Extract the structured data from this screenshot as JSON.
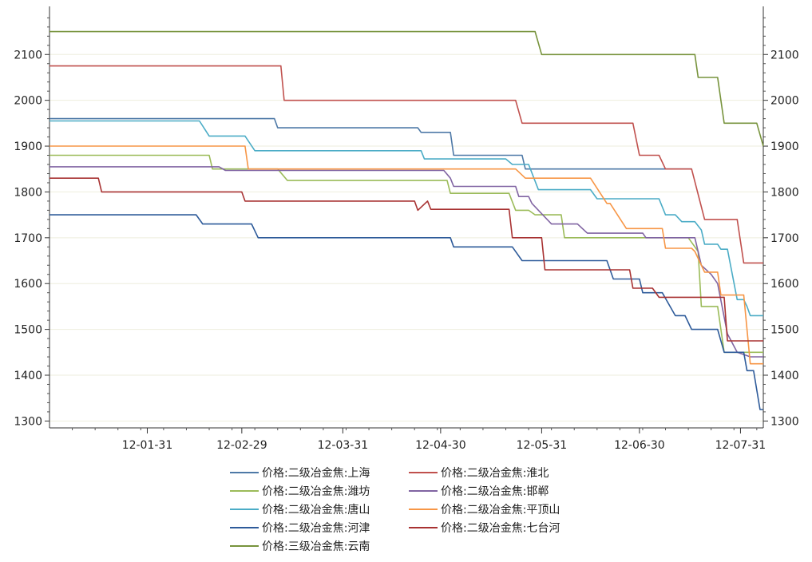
{
  "chart_data": {
    "type": "line",
    "title": "",
    "xlabel": "",
    "ylabel": "",
    "grid": true,
    "legend_position": "bottom",
    "x_range": [
      "2012-01-01",
      "2012-08-07"
    ],
    "ylim": [
      1285,
      2205
    ],
    "y_ticks": [
      1300,
      1400,
      1500,
      1600,
      1700,
      1800,
      1900,
      2000,
      2100
    ],
    "x_ticks": [
      {
        "date": "2012-01-31",
        "label": "12-01-31"
      },
      {
        "date": "2012-02-29",
        "label": "12-02-29"
      },
      {
        "date": "2012-03-31",
        "label": "12-03-31"
      },
      {
        "date": "2012-04-30",
        "label": "12-04-30"
      },
      {
        "date": "2012-05-31",
        "label": "12-05-31"
      },
      {
        "date": "2012-06-30",
        "label": "12-06-30"
      },
      {
        "date": "2012-07-31",
        "label": "12-07-31"
      }
    ],
    "series": [
      {
        "name": "价格:二级冶金焦:上海",
        "color": "#4E79A7",
        "points": [
          [
            "2012-01-01",
            1960
          ],
          [
            "2012-03-10",
            1960
          ],
          [
            "2012-03-11",
            1940
          ],
          [
            "2012-04-23",
            1940
          ],
          [
            "2012-04-24",
            1930
          ],
          [
            "2012-05-03",
            1930
          ],
          [
            "2012-05-04",
            1880
          ],
          [
            "2012-05-25",
            1880
          ],
          [
            "2012-05-26",
            1850
          ],
          [
            "2012-07-16",
            1850
          ]
        ]
      },
      {
        "name": "价格:二级冶金焦:淮北",
        "color": "#C0504D",
        "points": [
          [
            "2012-01-01",
            2075
          ],
          [
            "2012-03-12",
            2075
          ],
          [
            "2012-03-13",
            2000
          ],
          [
            "2012-05-23",
            2000
          ],
          [
            "2012-05-25",
            1950
          ],
          [
            "2012-06-28",
            1950
          ],
          [
            "2012-06-30",
            1880
          ],
          [
            "2012-07-06",
            1880
          ],
          [
            "2012-07-08",
            1850
          ],
          [
            "2012-07-16",
            1850
          ],
          [
            "2012-07-20",
            1740
          ],
          [
            "2012-07-30",
            1740
          ],
          [
            "2012-08-01",
            1645
          ],
          [
            "2012-08-07",
            1645
          ]
        ]
      },
      {
        "name": "价格:二级冶金焦:潍坊",
        "color": "#9BBB59",
        "points": [
          [
            "2012-01-01",
            1880
          ],
          [
            "2012-02-19",
            1880
          ],
          [
            "2012-02-20",
            1850
          ],
          [
            "2012-03-11",
            1850
          ],
          [
            "2012-03-14",
            1825
          ],
          [
            "2012-05-02",
            1825
          ],
          [
            "2012-05-03",
            1797
          ],
          [
            "2012-05-21",
            1797
          ],
          [
            "2012-05-23",
            1760
          ],
          [
            "2012-05-27",
            1760
          ],
          [
            "2012-05-29",
            1750
          ],
          [
            "2012-06-06",
            1750
          ],
          [
            "2012-06-07",
            1700
          ],
          [
            "2012-07-15",
            1700
          ],
          [
            "2012-07-18",
            1670
          ],
          [
            "2012-07-19",
            1550
          ],
          [
            "2012-07-24",
            1550
          ],
          [
            "2012-07-26",
            1450
          ],
          [
            "2012-08-07",
            1450
          ]
        ]
      },
      {
        "name": "价格:二级冶金焦:邯郸",
        "color": "#8064A2",
        "points": [
          [
            "2012-01-01",
            1855
          ],
          [
            "2012-02-22",
            1855
          ],
          [
            "2012-02-24",
            1847
          ],
          [
            "2012-05-01",
            1847
          ],
          [
            "2012-05-03",
            1830
          ],
          [
            "2012-05-04",
            1812
          ],
          [
            "2012-05-23",
            1812
          ],
          [
            "2012-05-24",
            1790
          ],
          [
            "2012-05-27",
            1790
          ],
          [
            "2012-05-28",
            1775
          ],
          [
            "2012-06-01",
            1745
          ],
          [
            "2012-06-03",
            1730
          ],
          [
            "2012-06-11",
            1730
          ],
          [
            "2012-06-14",
            1710
          ],
          [
            "2012-07-01",
            1710
          ],
          [
            "2012-07-02",
            1700
          ],
          [
            "2012-07-17",
            1700
          ],
          [
            "2012-07-19",
            1640
          ],
          [
            "2012-07-22",
            1620
          ],
          [
            "2012-07-24",
            1600
          ],
          [
            "2012-07-27",
            1490
          ],
          [
            "2012-07-30",
            1450
          ],
          [
            "2012-08-03",
            1440
          ],
          [
            "2012-08-07",
            1440
          ]
        ]
      },
      {
        "name": "价格:二级冶金焦:唐山",
        "color": "#4BACC6",
        "points": [
          [
            "2012-01-01",
            1955
          ],
          [
            "2012-02-16",
            1955
          ],
          [
            "2012-02-19",
            1922
          ],
          [
            "2012-03-01",
            1922
          ],
          [
            "2012-03-04",
            1890
          ],
          [
            "2012-04-24",
            1890
          ],
          [
            "2012-04-25",
            1872
          ],
          [
            "2012-05-20",
            1872
          ],
          [
            "2012-05-22",
            1860
          ],
          [
            "2012-05-27",
            1860
          ],
          [
            "2012-05-30",
            1805
          ],
          [
            "2012-06-15",
            1805
          ],
          [
            "2012-06-17",
            1785
          ],
          [
            "2012-07-06",
            1785
          ],
          [
            "2012-07-08",
            1750
          ],
          [
            "2012-07-11",
            1750
          ],
          [
            "2012-07-13",
            1735
          ],
          [
            "2012-07-17",
            1735
          ],
          [
            "2012-07-19",
            1717
          ],
          [
            "2012-07-20",
            1686
          ],
          [
            "2012-07-24",
            1686
          ],
          [
            "2012-07-25",
            1675
          ],
          [
            "2012-07-27",
            1675
          ],
          [
            "2012-07-30",
            1565
          ],
          [
            "2012-08-01",
            1565
          ],
          [
            "2012-08-02",
            1550
          ],
          [
            "2012-08-03",
            1530
          ],
          [
            "2012-08-07",
            1530
          ]
        ]
      },
      {
        "name": "价格:二级冶金焦:平顶山",
        "color": "#F79646",
        "points": [
          [
            "2012-01-01",
            1900
          ],
          [
            "2012-03-01",
            1900
          ],
          [
            "2012-03-02",
            1850
          ],
          [
            "2012-05-23",
            1850
          ],
          [
            "2012-05-26",
            1830
          ],
          [
            "2012-06-15",
            1830
          ],
          [
            "2012-06-20",
            1775
          ],
          [
            "2012-06-21",
            1775
          ],
          [
            "2012-06-26",
            1720
          ],
          [
            "2012-07-07",
            1720
          ],
          [
            "2012-07-08",
            1677
          ],
          [
            "2012-07-16",
            1677
          ],
          [
            "2012-07-17",
            1670
          ],
          [
            "2012-07-20",
            1625
          ],
          [
            "2012-07-24",
            1625
          ],
          [
            "2012-07-25",
            1575
          ],
          [
            "2012-08-01",
            1575
          ],
          [
            "2012-08-03",
            1425
          ],
          [
            "2012-08-07",
            1425
          ]
        ]
      },
      {
        "name": "价格:二级冶金焦:河津",
        "color": "#2E5B9A",
        "points": [
          [
            "2012-01-01",
            1750
          ],
          [
            "2012-02-15",
            1750
          ],
          [
            "2012-02-17",
            1730
          ],
          [
            "2012-03-03",
            1730
          ],
          [
            "2012-03-05",
            1700
          ],
          [
            "2012-05-03",
            1700
          ],
          [
            "2012-05-04",
            1680
          ],
          [
            "2012-05-22",
            1680
          ],
          [
            "2012-05-25",
            1650
          ],
          [
            "2012-06-20",
            1650
          ],
          [
            "2012-06-22",
            1610
          ],
          [
            "2012-06-30",
            1610
          ],
          [
            "2012-07-01",
            1580
          ],
          [
            "2012-07-07",
            1580
          ],
          [
            "2012-07-11",
            1530
          ],
          [
            "2012-07-14",
            1530
          ],
          [
            "2012-07-16",
            1500
          ],
          [
            "2012-07-24",
            1500
          ],
          [
            "2012-07-26",
            1450
          ],
          [
            "2012-08-01",
            1450
          ],
          [
            "2012-08-02",
            1410
          ],
          [
            "2012-08-04",
            1410
          ],
          [
            "2012-08-06",
            1325
          ],
          [
            "2012-08-07",
            1325
          ]
        ]
      },
      {
        "name": "价格:二级冶金焦:七台河",
        "color": "#A83232",
        "points": [
          [
            "2012-01-01",
            1830
          ],
          [
            "2012-01-16",
            1830
          ],
          [
            "2012-01-17",
            1800
          ],
          [
            "2012-02-29",
            1800
          ],
          [
            "2012-03-01",
            1780
          ],
          [
            "2012-04-22",
            1780
          ],
          [
            "2012-04-23",
            1760
          ],
          [
            "2012-04-26",
            1780
          ],
          [
            "2012-04-27",
            1762
          ],
          [
            "2012-05-21",
            1762
          ],
          [
            "2012-05-22",
            1700
          ],
          [
            "2012-05-31",
            1700
          ],
          [
            "2012-06-01",
            1630
          ],
          [
            "2012-06-27",
            1630
          ],
          [
            "2012-06-28",
            1590
          ],
          [
            "2012-07-04",
            1590
          ],
          [
            "2012-07-06",
            1570
          ],
          [
            "2012-07-26",
            1570
          ],
          [
            "2012-07-27",
            1475
          ],
          [
            "2012-08-07",
            1475
          ]
        ]
      },
      {
        "name": "价格:三级冶金焦:云南",
        "color": "#77933C",
        "points": [
          [
            "2012-01-01",
            2150
          ],
          [
            "2012-05-29",
            2150
          ],
          [
            "2012-05-31",
            2100
          ],
          [
            "2012-07-17",
            2100
          ],
          [
            "2012-07-18",
            2050
          ],
          [
            "2012-07-24",
            2050
          ],
          [
            "2012-07-26",
            1950
          ],
          [
            "2012-08-05",
            1950
          ],
          [
            "2012-08-07",
            1900
          ]
        ]
      }
    ]
  }
}
